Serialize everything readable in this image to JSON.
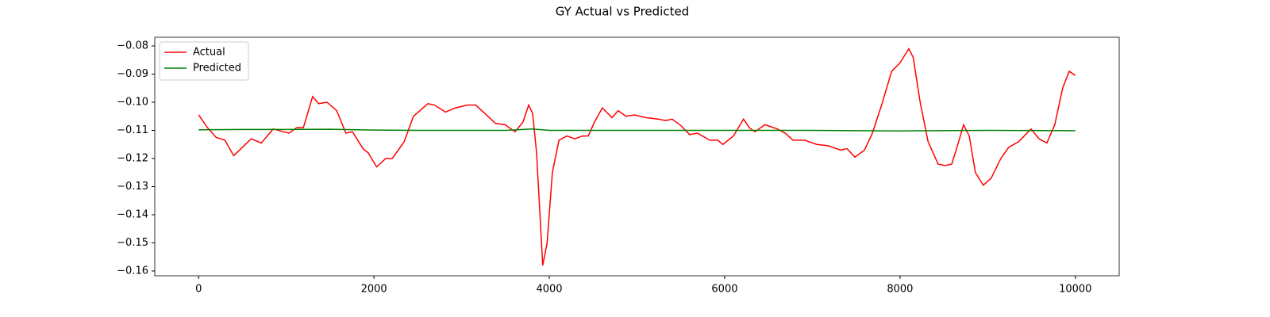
{
  "chart_data": {
    "type": "line",
    "title": "GY Actual vs Predicted",
    "xlim": [
      -500,
      10500
    ],
    "xticks": [
      0,
      2000,
      4000,
      6000,
      8000,
      10000
    ],
    "ylim": [
      -0.1617,
      -0.0769
    ],
    "yticks": [
      {
        "value": -0.16,
        "label": "−0.16"
      },
      {
        "value": -0.15,
        "label": "−0.15"
      },
      {
        "value": -0.14,
        "label": "−0.14"
      },
      {
        "value": -0.13,
        "label": "−0.13"
      },
      {
        "value": -0.12,
        "label": "−0.12"
      },
      {
        "value": -0.11,
        "label": "−0.11"
      },
      {
        "value": -0.1,
        "label": "−0.10"
      },
      {
        "value": -0.09,
        "label": "−0.09"
      },
      {
        "value": -0.08,
        "label": "−0.08"
      }
    ],
    "legend": "upper left",
    "series": [
      {
        "name": "Actual",
        "color": "#ff0000",
        "x": [
          0,
          100,
          200,
          300,
          400,
          500,
          600,
          715,
          850,
          1030,
          1120,
          1195,
          1300,
          1370,
          1465,
          1575,
          1680,
          1755,
          1875,
          1935,
          2030,
          2135,
          2210,
          2345,
          2450,
          2615,
          2690,
          2815,
          2930,
          3070,
          3160,
          3265,
          3385,
          3495,
          3610,
          3700,
          3765,
          3810,
          3855,
          3925,
          3975,
          4035,
          4110,
          4200,
          4290,
          4380,
          4445,
          4515,
          4605,
          4715,
          4785,
          4875,
          4970,
          5105,
          5240,
          5330,
          5400,
          5490,
          5600,
          5690,
          5830,
          5920,
          5980,
          6100,
          6215,
          6280,
          6345,
          6460,
          6600,
          6690,
          6780,
          6915,
          7050,
          7185,
          7320,
          7395,
          7485,
          7595,
          7685,
          7790,
          7905,
          8000,
          8100,
          8150,
          8230,
          8320,
          8435,
          8515,
          8590,
          8650,
          8725,
          8790,
          8860,
          8950,
          9040,
          9150,
          9240,
          9355,
          9495,
          9585,
          9675,
          9765,
          9855,
          9930,
          10000
        ],
        "values": [
          -0.1045,
          -0.109,
          -0.1125,
          -0.1135,
          -0.119,
          -0.116,
          -0.113,
          -0.1145,
          -0.1095,
          -0.111,
          -0.109,
          -0.109,
          -0.098,
          -0.1005,
          -0.1,
          -0.103,
          -0.111,
          -0.1105,
          -0.1165,
          -0.118,
          -0.123,
          -0.12,
          -0.12,
          -0.114,
          -0.105,
          -0.1005,
          -0.101,
          -0.1035,
          -0.102,
          -0.101,
          -0.101,
          -0.104,
          -0.1075,
          -0.108,
          -0.1105,
          -0.107,
          -0.101,
          -0.104,
          -0.118,
          -0.158,
          -0.15,
          -0.125,
          -0.1135,
          -0.112,
          -0.113,
          -0.112,
          -0.112,
          -0.107,
          -0.102,
          -0.1055,
          -0.103,
          -0.105,
          -0.1045,
          -0.1055,
          -0.106,
          -0.1065,
          -0.106,
          -0.108,
          -0.1115,
          -0.111,
          -0.1135,
          -0.1135,
          -0.115,
          -0.112,
          -0.106,
          -0.109,
          -0.1105,
          -0.108,
          -0.1095,
          -0.111,
          -0.1135,
          -0.1135,
          -0.115,
          -0.1155,
          -0.117,
          -0.1165,
          -0.1195,
          -0.117,
          -0.111,
          -0.101,
          -0.089,
          -0.086,
          -0.081,
          -0.084,
          -0.1,
          -0.114,
          -0.122,
          -0.1225,
          -0.122,
          -0.116,
          -0.108,
          -0.112,
          -0.125,
          -0.1295,
          -0.127,
          -0.12,
          -0.116,
          -0.114,
          -0.1095,
          -0.113,
          -0.1145,
          -0.108,
          -0.095,
          -0.089,
          -0.0905
        ]
      },
      {
        "name": "Predicted",
        "color": "#008000",
        "x": [
          0,
          500,
          1000,
          1500,
          2000,
          2500,
          3000,
          3500,
          3800,
          4000,
          5000,
          6000,
          7000,
          8000,
          9000,
          10000
        ],
        "values": [
          -0.1098,
          -0.1097,
          -0.1097,
          -0.1096,
          -0.1099,
          -0.11,
          -0.11,
          -0.11,
          -0.1095,
          -0.11,
          -0.11,
          -0.11,
          -0.11,
          -0.1102,
          -0.11,
          -0.1101
        ]
      }
    ]
  }
}
